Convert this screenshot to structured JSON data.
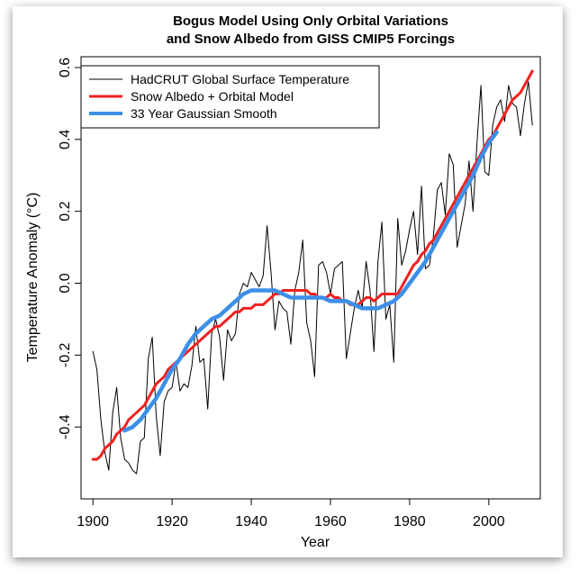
{
  "chart_data": {
    "type": "line",
    "title": [
      "Bogus Model Using Only Orbital Variations",
      "and Snow Albedo from GISS CMIP5 Forcings"
    ],
    "xlabel": "Year",
    "ylabel": "Temperature Anomaly (°C)",
    "xlim": [
      1897,
      2013
    ],
    "ylim": [
      -0.6,
      0.63
    ],
    "x_ticks": [
      1900,
      1920,
      1940,
      1960,
      1980,
      2000
    ],
    "y_ticks": [
      -0.4,
      -0.2,
      0.0,
      0.2,
      0.4,
      0.6
    ],
    "x_tick_labels": [
      "1900",
      "1920",
      "1940",
      "1960",
      "1980",
      "2000"
    ],
    "y_tick_labels": [
      "-0.4",
      "-0.2",
      "0.0",
      "0.2",
      "0.4",
      "0.6"
    ],
    "legend_position": "top-left",
    "series": [
      {
        "name": "HadCRUT Global Surface Temperature",
        "color": "#000000",
        "x": [
          1900,
          1901,
          1902,
          1903,
          1904,
          1905,
          1906,
          1907,
          1908,
          1909,
          1910,
          1911,
          1912,
          1913,
          1914,
          1915,
          1916,
          1917,
          1918,
          1919,
          1920,
          1921,
          1922,
          1923,
          1924,
          1925,
          1926,
          1927,
          1928,
          1929,
          1930,
          1931,
          1932,
          1933,
          1934,
          1935,
          1936,
          1937,
          1938,
          1939,
          1940,
          1941,
          1942,
          1943,
          1944,
          1945,
          1946,
          1947,
          1948,
          1949,
          1950,
          1951,
          1952,
          1953,
          1954,
          1955,
          1956,
          1957,
          1958,
          1959,
          1960,
          1961,
          1962,
          1963,
          1964,
          1965,
          1966,
          1967,
          1968,
          1969,
          1970,
          1971,
          1972,
          1973,
          1974,
          1975,
          1976,
          1977,
          1978,
          1979,
          1980,
          1981,
          1982,
          1983,
          1984,
          1985,
          1986,
          1987,
          1988,
          1989,
          1990,
          1991,
          1992,
          1993,
          1994,
          1995,
          1996,
          1997,
          1998,
          1999,
          2000,
          2001,
          2002,
          2003,
          2004,
          2005,
          2006,
          2007,
          2008,
          2009,
          2010,
          2011
        ],
        "values": [
          -0.19,
          -0.24,
          -0.38,
          -0.47,
          -0.52,
          -0.36,
          -0.29,
          -0.43,
          -0.49,
          -0.5,
          -0.52,
          -0.53,
          -0.44,
          -0.43,
          -0.21,
          -0.15,
          -0.37,
          -0.48,
          -0.33,
          -0.3,
          -0.29,
          -0.22,
          -0.3,
          -0.28,
          -0.29,
          -0.23,
          -0.12,
          -0.22,
          -0.21,
          -0.35,
          -0.14,
          -0.1,
          -0.15,
          -0.27,
          -0.13,
          -0.16,
          -0.14,
          -0.03,
          0.0,
          -0.01,
          0.03,
          0.01,
          -0.01,
          0.02,
          0.16,
          0.03,
          -0.13,
          -0.05,
          -0.07,
          -0.08,
          -0.17,
          -0.02,
          0.03,
          0.12,
          -0.11,
          -0.16,
          -0.26,
          0.05,
          0.06,
          0.03,
          -0.03,
          0.04,
          0.05,
          0.06,
          -0.21,
          -0.14,
          -0.07,
          -0.02,
          -0.07,
          0.06,
          -0.02,
          -0.19,
          0.06,
          0.17,
          -0.1,
          -0.06,
          -0.22,
          0.18,
          0.05,
          0.09,
          0.15,
          0.2,
          0.08,
          0.27,
          0.04,
          0.05,
          0.13,
          0.26,
          0.28,
          0.19,
          0.36,
          0.33,
          0.1,
          0.16,
          0.22,
          0.34,
          0.2,
          0.39,
          0.55,
          0.31,
          0.3,
          0.44,
          0.49,
          0.51,
          0.45,
          0.55,
          0.5,
          0.49,
          0.41,
          0.5,
          0.56,
          0.44
        ]
      },
      {
        "name": "Snow Albedo + Orbital Model",
        "color": "#ee2222",
        "x": [
          1900,
          1901,
          1902,
          1903,
          1904,
          1905,
          1906,
          1907,
          1908,
          1909,
          1910,
          1911,
          1912,
          1913,
          1914,
          1915,
          1916,
          1917,
          1918,
          1919,
          1920,
          1921,
          1922,
          1923,
          1924,
          1925,
          1926,
          1927,
          1928,
          1929,
          1930,
          1931,
          1932,
          1933,
          1934,
          1935,
          1936,
          1937,
          1938,
          1939,
          1940,
          1941,
          1942,
          1943,
          1944,
          1945,
          1946,
          1947,
          1948,
          1949,
          1950,
          1951,
          1952,
          1953,
          1954,
          1955,
          1956,
          1957,
          1958,
          1959,
          1960,
          1961,
          1962,
          1963,
          1964,
          1965,
          1966,
          1967,
          1968,
          1969,
          1970,
          1971,
          1972,
          1973,
          1974,
          1975,
          1976,
          1977,
          1978,
          1979,
          1980,
          1981,
          1982,
          1983,
          1984,
          1985,
          1986,
          1987,
          1988,
          1989,
          1990,
          1991,
          1992,
          1993,
          1994,
          1995,
          1996,
          1997,
          1998,
          1999,
          2000,
          2001,
          2002,
          2003,
          2004,
          2005,
          2006,
          2007,
          2008,
          2009,
          2010,
          2011
        ],
        "values": [
          -0.49,
          -0.49,
          -0.48,
          -0.46,
          -0.45,
          -0.44,
          -0.42,
          -0.41,
          -0.4,
          -0.38,
          -0.37,
          -0.36,
          -0.35,
          -0.34,
          -0.32,
          -0.3,
          -0.28,
          -0.27,
          -0.26,
          -0.24,
          -0.23,
          -0.22,
          -0.21,
          -0.2,
          -0.19,
          -0.18,
          -0.17,
          -0.16,
          -0.15,
          -0.14,
          -0.13,
          -0.12,
          -0.12,
          -0.11,
          -0.1,
          -0.09,
          -0.08,
          -0.08,
          -0.07,
          -0.07,
          -0.07,
          -0.06,
          -0.06,
          -0.06,
          -0.05,
          -0.04,
          -0.03,
          -0.03,
          -0.02,
          -0.02,
          -0.02,
          -0.02,
          -0.02,
          -0.02,
          -0.02,
          -0.03,
          -0.03,
          -0.04,
          -0.04,
          -0.04,
          -0.03,
          -0.04,
          -0.04,
          -0.05,
          -0.05,
          -0.06,
          -0.06,
          -0.06,
          -0.05,
          -0.04,
          -0.04,
          -0.05,
          -0.04,
          -0.03,
          -0.03,
          -0.03,
          -0.03,
          -0.03,
          -0.01,
          0.01,
          0.03,
          0.05,
          0.06,
          0.08,
          0.09,
          0.11,
          0.12,
          0.14,
          0.16,
          0.18,
          0.2,
          0.22,
          0.24,
          0.26,
          0.28,
          0.3,
          0.32,
          0.34,
          0.36,
          0.38,
          0.4,
          0.41,
          0.43,
          0.45,
          0.47,
          0.49,
          0.51,
          0.52,
          0.53,
          0.55,
          0.57,
          0.59
        ]
      },
      {
        "name": "33 Year Gaussian Smooth",
        "color": "#3d8fe8",
        "x": [
          1908,
          1910,
          1912,
          1914,
          1916,
          1918,
          1920,
          1922,
          1924,
          1926,
          1928,
          1930,
          1932,
          1934,
          1936,
          1938,
          1940,
          1942,
          1944,
          1946,
          1948,
          1950,
          1952,
          1954,
          1956,
          1958,
          1960,
          1962,
          1964,
          1966,
          1968,
          1970,
          1972,
          1974,
          1976,
          1978,
          1980,
          1982,
          1984,
          1986,
          1988,
          1990,
          1992,
          1994,
          1996,
          1998,
          2000,
          2002
        ],
        "values": [
          -0.41,
          -0.4,
          -0.38,
          -0.35,
          -0.32,
          -0.28,
          -0.24,
          -0.21,
          -0.17,
          -0.14,
          -0.12,
          -0.1,
          -0.09,
          -0.07,
          -0.05,
          -0.03,
          -0.02,
          -0.02,
          -0.02,
          -0.02,
          -0.03,
          -0.04,
          -0.04,
          -0.04,
          -0.04,
          -0.04,
          -0.05,
          -0.05,
          -0.05,
          -0.06,
          -0.07,
          -0.07,
          -0.07,
          -0.06,
          -0.05,
          -0.03,
          0.0,
          0.03,
          0.06,
          0.1,
          0.14,
          0.18,
          0.22,
          0.26,
          0.3,
          0.35,
          0.39,
          0.42
        ]
      }
    ]
  }
}
